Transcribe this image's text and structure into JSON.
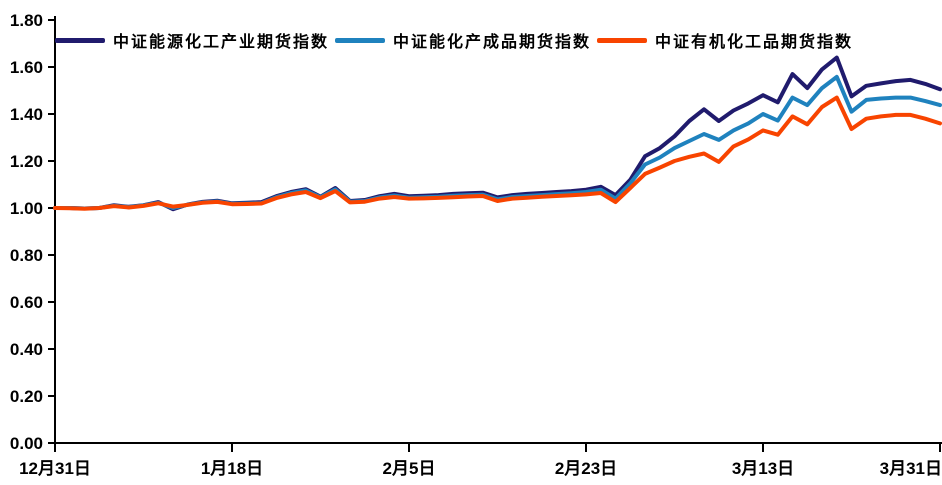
{
  "chart_data": {
    "type": "line",
    "title": "",
    "xlabel": "",
    "ylabel": "",
    "grid": false,
    "legend_position": "top-left",
    "ylim": [
      0.0,
      1.8
    ],
    "y_step": 0.2,
    "y_tick_labels": [
      "0.00",
      "0.20",
      "0.40",
      "0.60",
      "0.80",
      "1.00",
      "1.20",
      "1.40",
      "1.60",
      "1.80"
    ],
    "x_tick_labels": [
      "12月31日",
      "1月18日",
      "2月5日",
      "2月23日",
      "3月13日",
      "3月31日"
    ],
    "axis_color": "#000000",
    "series": [
      {
        "name": "中证能源化工产业期货指数",
        "color": "#201B6D",
        "values": [
          1.0,
          1.0,
          0.998,
          1.0,
          1.012,
          1.005,
          1.012,
          1.025,
          0.995,
          1.015,
          1.026,
          1.031,
          1.02,
          1.022,
          1.025,
          1.05,
          1.068,
          1.08,
          1.048,
          1.085,
          1.03,
          1.034,
          1.05,
          1.06,
          1.05,
          1.052,
          1.055,
          1.06,
          1.063,
          1.065,
          1.045,
          1.055,
          1.06,
          1.064,
          1.068,
          1.072,
          1.078,
          1.09,
          1.055,
          1.12,
          1.22,
          1.255,
          1.305,
          1.37,
          1.42,
          1.37,
          1.415,
          1.445,
          1.48,
          1.45,
          1.57,
          1.51,
          1.59,
          1.64,
          1.475,
          1.52,
          1.53,
          1.54,
          1.545,
          1.528,
          1.505
        ]
      },
      {
        "name": "中证能化产成品期货指数",
        "color": "#1F82BE",
        "values": [
          1.0,
          1.0,
          0.998,
          1.0,
          1.01,
          1.004,
          1.011,
          1.022,
          1.0,
          1.014,
          1.024,
          1.028,
          1.018,
          1.019,
          1.021,
          1.046,
          1.064,
          1.075,
          1.046,
          1.079,
          1.027,
          1.03,
          1.045,
          1.053,
          1.044,
          1.046,
          1.048,
          1.052,
          1.055,
          1.057,
          1.037,
          1.047,
          1.051,
          1.055,
          1.059,
          1.063,
          1.068,
          1.078,
          1.04,
          1.105,
          1.185,
          1.215,
          1.255,
          1.285,
          1.315,
          1.29,
          1.33,
          1.36,
          1.4,
          1.372,
          1.47,
          1.438,
          1.51,
          1.558,
          1.41,
          1.46,
          1.466,
          1.47,
          1.47,
          1.455,
          1.438
        ]
      },
      {
        "name": "中证有机化工品期货指数",
        "color": "#F84400",
        "values": [
          1.0,
          0.999,
          0.997,
          1.0,
          1.008,
          1.002,
          1.009,
          1.02,
          1.006,
          1.013,
          1.022,
          1.026,
          1.016,
          1.017,
          1.019,
          1.042,
          1.058,
          1.068,
          1.042,
          1.072,
          1.024,
          1.027,
          1.04,
          1.047,
          1.04,
          1.041,
          1.043,
          1.046,
          1.049,
          1.051,
          1.03,
          1.04,
          1.044,
          1.048,
          1.051,
          1.054,
          1.058,
          1.064,
          1.025,
          1.085,
          1.145,
          1.172,
          1.2,
          1.218,
          1.232,
          1.196,
          1.262,
          1.292,
          1.33,
          1.312,
          1.39,
          1.356,
          1.43,
          1.47,
          1.336,
          1.38,
          1.39,
          1.396,
          1.396,
          1.38,
          1.36
        ]
      }
    ]
  }
}
